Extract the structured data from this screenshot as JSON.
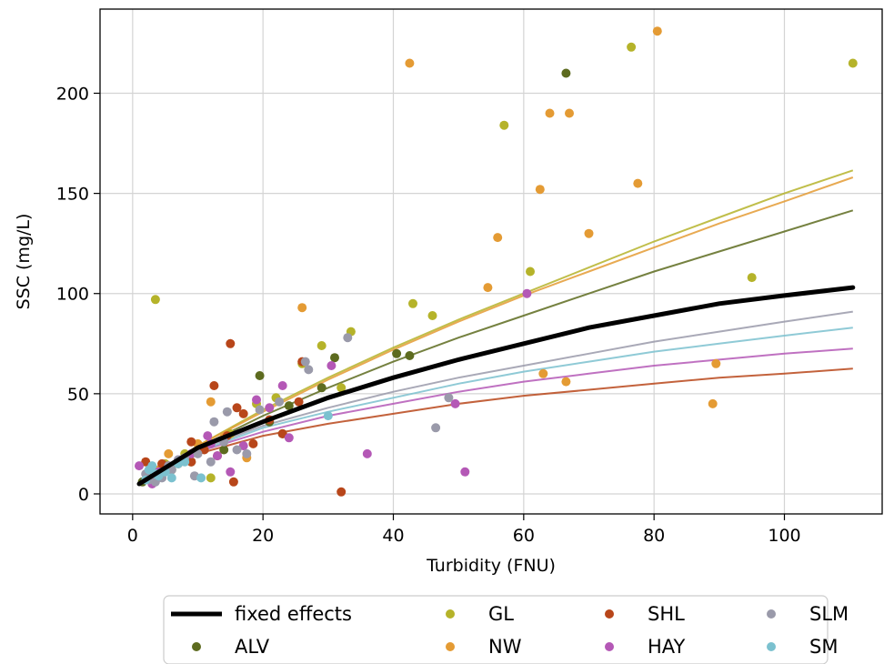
{
  "chart_data": {
    "type": "scatter",
    "xlabel": "Turbidity (FNU)",
    "ylabel": "SSC (mg/L)",
    "xlim": [
      -5,
      115
    ],
    "ylim": [
      -10,
      242
    ],
    "x_ticks": [
      0,
      20,
      40,
      60,
      80,
      100
    ],
    "y_ticks": [
      0,
      50,
      100,
      150,
      200
    ],
    "grid": true,
    "legend_placement": "bottom-center",
    "fixed_effects": {
      "name": "fixed effects",
      "color": "#000000",
      "points": [
        [
          1,
          5
        ],
        [
          10,
          23
        ],
        [
          20,
          36
        ],
        [
          30,
          48
        ],
        [
          40,
          58
        ],
        [
          50,
          67
        ],
        [
          60,
          75
        ],
        [
          70,
          83
        ],
        [
          80,
          89
        ],
        [
          90,
          95
        ],
        [
          100,
          99
        ],
        [
          110.5,
          103
        ]
      ]
    },
    "series": [
      {
        "name": "GL",
        "color": "#b5b32a",
        "points": [
          [
            3.5,
            97
          ],
          [
            12,
            8
          ],
          [
            29,
            74
          ],
          [
            32,
            53
          ],
          [
            33.5,
            81
          ],
          [
            43,
            95
          ],
          [
            46,
            89
          ],
          [
            57,
            184
          ],
          [
            61,
            111
          ],
          [
            76.5,
            223
          ],
          [
            95,
            108
          ],
          [
            110.5,
            215
          ],
          [
            5,
            15
          ],
          [
            8,
            20
          ],
          [
            15,
            30
          ],
          [
            19,
            45
          ],
          [
            26,
            65
          ],
          [
            22,
            48
          ]
        ],
        "fit": [
          [
            1,
            5
          ],
          [
            10,
            24
          ],
          [
            20,
            42
          ],
          [
            30,
            58
          ],
          [
            40,
            73
          ],
          [
            50,
            87
          ],
          [
            60,
            100
          ],
          [
            70,
            113
          ],
          [
            80,
            126
          ],
          [
            90,
            138
          ],
          [
            100,
            150
          ],
          [
            110.5,
            161.5
          ]
        ]
      },
      {
        "name": "NW",
        "color": "#e49b34",
        "points": [
          [
            5.5,
            20
          ],
          [
            12,
            46
          ],
          [
            17.5,
            18
          ],
          [
            26,
            93
          ],
          [
            42.5,
            215
          ],
          [
            54.5,
            103
          ],
          [
            56,
            128
          ],
          [
            62.5,
            152
          ],
          [
            64,
            190
          ],
          [
            67,
            190
          ],
          [
            63,
            60
          ],
          [
            66.5,
            56
          ],
          [
            70,
            130
          ],
          [
            77.5,
            155
          ],
          [
            80.5,
            231
          ],
          [
            89,
            45
          ],
          [
            89.5,
            65
          ],
          [
            10,
            25
          ],
          [
            8,
            18
          ],
          [
            4,
            12
          ],
          [
            14,
            28
          ]
        ],
        "fit": [
          [
            1,
            5
          ],
          [
            10,
            24
          ],
          [
            20,
            41
          ],
          [
            30,
            57
          ],
          [
            40,
            72
          ],
          [
            50,
            86
          ],
          [
            60,
            99
          ],
          [
            70,
            111
          ],
          [
            80,
            123
          ],
          [
            90,
            135
          ],
          [
            100,
            146
          ],
          [
            110.5,
            158
          ]
        ]
      },
      {
        "name": "ALV",
        "color": "#5d6b1f",
        "points": [
          [
            1.5,
            6
          ],
          [
            19.5,
            59
          ],
          [
            23,
            30
          ],
          [
            24,
            44
          ],
          [
            29,
            53
          ],
          [
            31,
            68
          ],
          [
            40.5,
            70
          ],
          [
            42.5,
            69
          ],
          [
            66.5,
            210
          ],
          [
            14,
            22
          ],
          [
            21,
            36
          ],
          [
            9,
            16
          ],
          [
            6,
            12
          ],
          [
            3,
            8
          ]
        ],
        "fit": [
          [
            1,
            5
          ],
          [
            10,
            23
          ],
          [
            20,
            39
          ],
          [
            30,
            53
          ],
          [
            40,
            66
          ],
          [
            50,
            78
          ],
          [
            60,
            89
          ],
          [
            70,
            100
          ],
          [
            80,
            111
          ],
          [
            90,
            121
          ],
          [
            100,
            131
          ],
          [
            110.5,
            141.5
          ]
        ]
      },
      {
        "name": "SHL",
        "color": "#b8461a",
        "points": [
          [
            2,
            16
          ],
          [
            3.5,
            10
          ],
          [
            4.5,
            15
          ],
          [
            9,
            26
          ],
          [
            9,
            16
          ],
          [
            12.5,
            54
          ],
          [
            14.5,
            29
          ],
          [
            15,
            75
          ],
          [
            15.5,
            6
          ],
          [
            16,
            43
          ],
          [
            17,
            40
          ],
          [
            18.5,
            25
          ],
          [
            21,
            37
          ],
          [
            23,
            30
          ],
          [
            25.5,
            46
          ],
          [
            26,
            66
          ],
          [
            32,
            1
          ],
          [
            11,
            22
          ],
          [
            7,
            15
          ],
          [
            13,
            19
          ]
        ],
        "fit": [
          [
            1,
            5
          ],
          [
            10,
            20
          ],
          [
            20,
            29
          ],
          [
            30,
            35
          ],
          [
            40,
            40
          ],
          [
            50,
            45
          ],
          [
            60,
            49
          ],
          [
            70,
            52
          ],
          [
            80,
            55
          ],
          [
            90,
            58
          ],
          [
            100,
            60
          ],
          [
            110.5,
            62.5
          ]
        ]
      },
      {
        "name": "HAY",
        "color": "#b458b6",
        "points": [
          [
            1,
            14
          ],
          [
            3,
            5
          ],
          [
            4,
            11
          ],
          [
            5.5,
            14
          ],
          [
            11.5,
            29
          ],
          [
            13,
            19
          ],
          [
            15,
            11
          ],
          [
            19,
            47
          ],
          [
            21,
            43
          ],
          [
            23,
            54
          ],
          [
            24,
            28
          ],
          [
            30.5,
            64
          ],
          [
            36,
            20
          ],
          [
            49.5,
            45
          ],
          [
            51,
            11
          ],
          [
            60.5,
            100
          ],
          [
            7,
            17
          ],
          [
            9,
            20
          ],
          [
            17,
            24
          ],
          [
            12,
            25
          ]
        ],
        "fit": [
          [
            1,
            5
          ],
          [
            10,
            21
          ],
          [
            20,
            31
          ],
          [
            30,
            39
          ],
          [
            40,
            45
          ],
          [
            50,
            51
          ],
          [
            60,
            56
          ],
          [
            70,
            60
          ],
          [
            80,
            64
          ],
          [
            90,
            67
          ],
          [
            100,
            70
          ],
          [
            110.5,
            72.5
          ]
        ]
      },
      {
        "name": "SLM",
        "color": "#9a9aaa",
        "points": [
          [
            2,
            10
          ],
          [
            2.5,
            7
          ],
          [
            3.5,
            6
          ],
          [
            4.5,
            8
          ],
          [
            5.5,
            14
          ],
          [
            7,
            17
          ],
          [
            9.5,
            9
          ],
          [
            12,
            16
          ],
          [
            12.5,
            36
          ],
          [
            14,
            26
          ],
          [
            14.5,
            41
          ],
          [
            16,
            22
          ],
          [
            17.5,
            20
          ],
          [
            19.5,
            42
          ],
          [
            22.5,
            46
          ],
          [
            26.5,
            66
          ],
          [
            27,
            62
          ],
          [
            33,
            78
          ],
          [
            46.5,
            33
          ],
          [
            48.5,
            48
          ],
          [
            8,
            18
          ],
          [
            6,
            12
          ],
          [
            10,
            20
          ]
        ],
        "fit": [
          [
            1,
            5
          ],
          [
            10,
            22
          ],
          [
            20,
            34
          ],
          [
            30,
            43
          ],
          [
            40,
            51
          ],
          [
            50,
            58
          ],
          [
            60,
            64
          ],
          [
            70,
            70
          ],
          [
            80,
            76
          ],
          [
            90,
            81
          ],
          [
            100,
            86
          ],
          [
            110.5,
            91
          ]
        ]
      },
      {
        "name": "SM",
        "color": "#7bc1cf",
        "points": [
          [
            2,
            7
          ],
          [
            2.5,
            12
          ],
          [
            3.5,
            10
          ],
          [
            4,
            9
          ],
          [
            6,
            8
          ],
          [
            10.5,
            8
          ],
          [
            30,
            39
          ],
          [
            5,
            11
          ],
          [
            7,
            15
          ],
          [
            3,
            14
          ],
          [
            8,
            16
          ]
        ],
        "fit": [
          [
            1,
            5
          ],
          [
            10,
            21
          ],
          [
            20,
            33
          ],
          [
            30,
            41
          ],
          [
            40,
            48
          ],
          [
            50,
            55
          ],
          [
            60,
            61
          ],
          [
            70,
            66
          ],
          [
            80,
            71
          ],
          [
            90,
            75
          ],
          [
            100,
            79
          ],
          [
            110.5,
            83
          ]
        ]
      }
    ],
    "legend": [
      {
        "label": "fixed effects",
        "kind": "line",
        "color": "#000000"
      },
      {
        "label": "ALV",
        "kind": "dot",
        "color": "#5d6b1f"
      },
      {
        "label": "GL",
        "kind": "dot",
        "color": "#b5b32a"
      },
      {
        "label": "NW",
        "kind": "dot",
        "color": "#e49b34"
      },
      {
        "label": "SHL",
        "kind": "dot",
        "color": "#b8461a"
      },
      {
        "label": "HAY",
        "kind": "dot",
        "color": "#b458b6"
      },
      {
        "label": "SLM",
        "kind": "dot",
        "color": "#9a9aaa"
      },
      {
        "label": "SM",
        "kind": "dot",
        "color": "#7bc1cf"
      }
    ]
  }
}
